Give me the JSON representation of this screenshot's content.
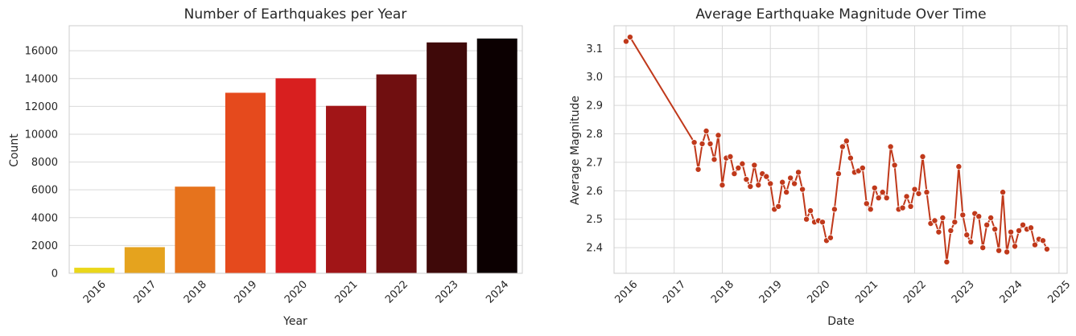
{
  "chart_data": [
    {
      "type": "bar",
      "title": "Number of Earthquakes per Year",
      "xlabel": "Year",
      "ylabel": "Count",
      "categories": [
        "2016",
        "2017",
        "2018",
        "2019",
        "2020",
        "2021",
        "2022",
        "2023",
        "2024"
      ],
      "values": [
        400,
        1880,
        6230,
        12980,
        14020,
        12040,
        14300,
        16600,
        16880
      ],
      "bar_colors": [
        "#ead71a",
        "#e5a31e",
        "#e6731d",
        "#e54a1d",
        "#d81f1f",
        "#a11517",
        "#700f10",
        "#3f0909",
        "#0c0001"
      ],
      "ylim": [
        0,
        17800
      ],
      "yticks": [
        0,
        2000,
        4000,
        6000,
        8000,
        10000,
        12000,
        14000,
        16000
      ],
      "grid": true,
      "xtick_rotation": 45
    },
    {
      "type": "line",
      "title": "Average Earthquake Magnitude Over Time",
      "xlabel": "Date",
      "ylabel": "Average Magnitude",
      "xticks": [
        "2016",
        "2017",
        "2018",
        "2019",
        "2020",
        "2021",
        "2022",
        "2023",
        "2024",
        "2025"
      ],
      "yticks": [
        "2.4",
        "2.5",
        "2.6",
        "2.7",
        "2.8",
        "2.9",
        "3.0",
        "3.1"
      ],
      "xlim": [
        2015.75,
        2025.17
      ],
      "ylim": [
        2.31,
        3.18
      ],
      "line_color": "#c0391b",
      "marker": "o",
      "grid": true,
      "xtick_rotation": 45,
      "points": [
        [
          2016.0,
          3.125
        ],
        [
          2016.083,
          3.14
        ],
        [
          2017.417,
          2.77
        ],
        [
          2017.5,
          2.675
        ],
        [
          2017.583,
          2.765
        ],
        [
          2017.667,
          2.81
        ],
        [
          2017.75,
          2.765
        ],
        [
          2017.833,
          2.71
        ],
        [
          2017.917,
          2.795
        ],
        [
          2018.0,
          2.62
        ],
        [
          2018.083,
          2.715
        ],
        [
          2018.167,
          2.72
        ],
        [
          2018.25,
          2.66
        ],
        [
          2018.333,
          2.68
        ],
        [
          2018.417,
          2.695
        ],
        [
          2018.5,
          2.64
        ],
        [
          2018.583,
          2.615
        ],
        [
          2018.667,
          2.69
        ],
        [
          2018.75,
          2.62
        ],
        [
          2018.833,
          2.66
        ],
        [
          2018.917,
          2.65
        ],
        [
          2019.0,
          2.625
        ],
        [
          2019.083,
          2.535
        ],
        [
          2019.167,
          2.545
        ],
        [
          2019.25,
          2.63
        ],
        [
          2019.333,
          2.595
        ],
        [
          2019.417,
          2.645
        ],
        [
          2019.5,
          2.625
        ],
        [
          2019.583,
          2.665
        ],
        [
          2019.667,
          2.605
        ],
        [
          2019.75,
          2.5
        ],
        [
          2019.833,
          2.53
        ],
        [
          2019.917,
          2.49
        ],
        [
          2020.0,
          2.495
        ],
        [
          2020.083,
          2.49
        ],
        [
          2020.167,
          2.425
        ],
        [
          2020.25,
          2.435
        ],
        [
          2020.333,
          2.535
        ],
        [
          2020.417,
          2.66
        ],
        [
          2020.5,
          2.755
        ],
        [
          2020.583,
          2.775
        ],
        [
          2020.667,
          2.715
        ],
        [
          2020.75,
          2.665
        ],
        [
          2020.833,
          2.67
        ],
        [
          2020.917,
          2.68
        ],
        [
          2021.0,
          2.555
        ],
        [
          2021.083,
          2.535
        ],
        [
          2021.167,
          2.61
        ],
        [
          2021.25,
          2.575
        ],
        [
          2021.333,
          2.595
        ],
        [
          2021.417,
          2.575
        ],
        [
          2021.5,
          2.755
        ],
        [
          2021.583,
          2.69
        ],
        [
          2021.667,
          2.535
        ],
        [
          2021.75,
          2.54
        ],
        [
          2021.833,
          2.58
        ],
        [
          2021.917,
          2.545
        ],
        [
          2022.0,
          2.605
        ],
        [
          2022.083,
          2.59
        ],
        [
          2022.167,
          2.72
        ],
        [
          2022.25,
          2.595
        ],
        [
          2022.333,
          2.485
        ],
        [
          2022.417,
          2.495
        ],
        [
          2022.5,
          2.455
        ],
        [
          2022.583,
          2.505
        ],
        [
          2022.667,
          2.35
        ],
        [
          2022.75,
          2.46
        ],
        [
          2022.833,
          2.49
        ],
        [
          2022.917,
          2.685
        ],
        [
          2023.0,
          2.515
        ],
        [
          2023.083,
          2.445
        ],
        [
          2023.167,
          2.42
        ],
        [
          2023.25,
          2.52
        ],
        [
          2023.333,
          2.51
        ],
        [
          2023.417,
          2.4
        ],
        [
          2023.5,
          2.48
        ],
        [
          2023.583,
          2.505
        ],
        [
          2023.667,
          2.465
        ],
        [
          2023.75,
          2.39
        ],
        [
          2023.833,
          2.595
        ],
        [
          2023.917,
          2.385
        ],
        [
          2024.0,
          2.455
        ],
        [
          2024.083,
          2.405
        ],
        [
          2024.167,
          2.46
        ],
        [
          2024.25,
          2.48
        ],
        [
          2024.333,
          2.465
        ],
        [
          2024.417,
          2.47
        ],
        [
          2024.5,
          2.41
        ],
        [
          2024.583,
          2.43
        ],
        [
          2024.667,
          2.425
        ],
        [
          2024.75,
          2.395
        ]
      ]
    }
  ]
}
